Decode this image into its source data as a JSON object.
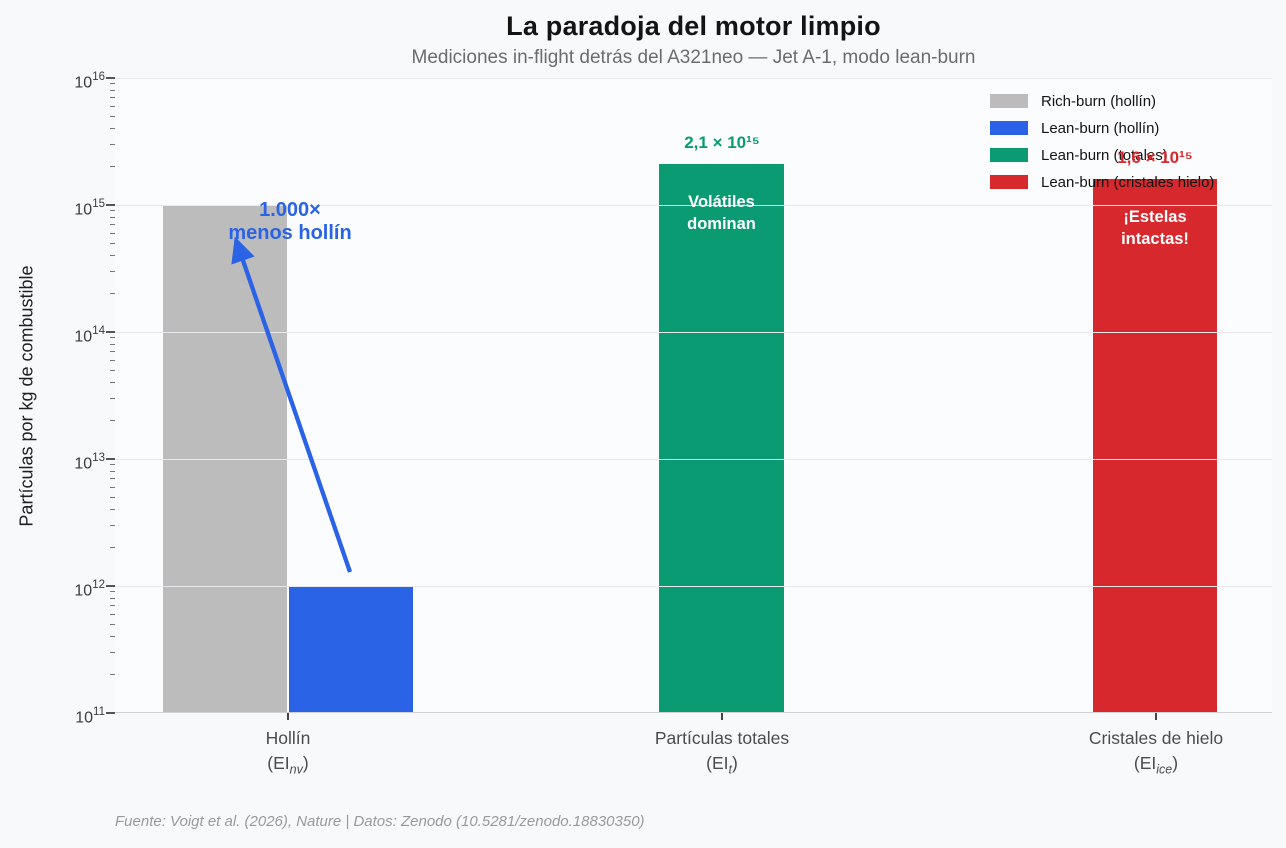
{
  "title": "La paradoja del motor limpio",
  "subtitle": "Mediciones in-flight detrás del A321neo — Jet A-1, modo lean-burn",
  "footer": "Fuente: Voigt et al. (2026), Nature | Datos: Zenodo (10.5281/zenodo.18830350)",
  "colors": {
    "gray": "#bcbcbc",
    "blue": "#2b63e6",
    "green": "#0a9b72",
    "red": "#d7292d",
    "grid": "#e9e9ec",
    "axis_line": "#cfcfd4",
    "title_text": "#141414",
    "subtitle_text": "#6c6c6c",
    "footer_text": "#9a9a9a"
  },
  "legend": {
    "position": "upper right",
    "items": [
      {
        "label": "Rich-burn (hollín)",
        "color": "gray"
      },
      {
        "label": "Lean-burn (hollín)",
        "color": "blue"
      },
      {
        "label": "Lean-burn (totales)",
        "color": "green"
      },
      {
        "label": "Lean-burn (cristales hielo)",
        "color": "red"
      }
    ]
  },
  "chart_data": {
    "type": "bar",
    "yscale": "log",
    "ylim": [
      100000000000.0,
      1e+16
    ],
    "grid": true,
    "ylabel": "Partículas por kg de combustible",
    "xlabel": "",
    "categories": [
      {
        "label": "Hollín",
        "ei_pre": "(EI",
        "ei_sub": "nv",
        "ei_post": ")"
      },
      {
        "label": "Partículas totales",
        "ei_pre": "(EI",
        "ei_sub": "t",
        "ei_post": ")"
      },
      {
        "label": "Cristales de hielo",
        "ei_pre": "(EI",
        "ei_sub": "ice",
        "ei_post": ")"
      }
    ],
    "bars": [
      {
        "category": "Hollín (EInv)",
        "series": "Rich-burn (hollín)",
        "value": 1000000000000000.0,
        "color": "gray"
      },
      {
        "category": "Hollín (EInv)",
        "series": "Lean-burn (hollín)",
        "value": 1000000000000.0,
        "color": "blue"
      },
      {
        "category": "Partículas totales (EIt)",
        "series": "Lean-burn (totales)",
        "value": 2100000000000000.0,
        "color": "green",
        "value_label": "2,1 × 10¹⁵",
        "inner_label_line1": "Volátiles",
        "inner_label_line2": "dominan"
      },
      {
        "category": "Cristales de hielo (EIice)",
        "series": "Lean-burn (cristales hielo)",
        "value": 1600000000000000.0,
        "color": "red",
        "value_label": "1,6 × 10¹⁵",
        "inner_label_line1": "¡Estelas",
        "inner_label_line2": "intactas!"
      }
    ],
    "yticks": [
      {
        "base": "10",
        "exp": "16"
      },
      {
        "base": "10",
        "exp": "15"
      },
      {
        "base": "10",
        "exp": "14"
      },
      {
        "base": "10",
        "exp": "13"
      },
      {
        "base": "10",
        "exp": "12"
      },
      {
        "base": "10",
        "exp": "11"
      }
    ],
    "annotation": {
      "line1": "1.000×",
      "line2": "menos hollín",
      "color": "blue"
    }
  }
}
